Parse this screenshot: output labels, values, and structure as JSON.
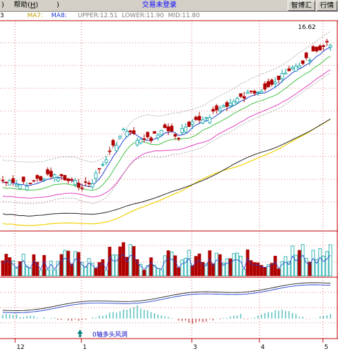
{
  "menu": {
    "left_fragment": ")",
    "help": "帮助",
    "help_key": "H",
    "right_fragment": ")"
  },
  "window_title": "交易未登录",
  "buttons": {
    "zhibo": "智博汇",
    "hangqing": "行情"
  },
  "legend": {
    "period_fragment": "3",
    "ma7": "MA7:",
    "ma8": "MA8:",
    "upper": "UPPER:12.51",
    "lower": "LOWER:11.90",
    "mid": "MID:11.80"
  },
  "annotations": {
    "high_value": "16.62",
    "macd_note": "0轴多头风洞"
  },
  "x_axis_labels": [
    "12",
    "1",
    "3",
    "4",
    "5"
  ],
  "colors": {
    "up_candle": "#00a0a0",
    "down_candle": "#b00000",
    "ma_yellow": "#f0d000",
    "ma_black": "#202020",
    "ma_magenta": "#e040c0",
    "ma_green": "#40c040",
    "ma_blue": "#2040d0",
    "grid": "#c00000",
    "title_blue": "#0000ff"
  }
}
